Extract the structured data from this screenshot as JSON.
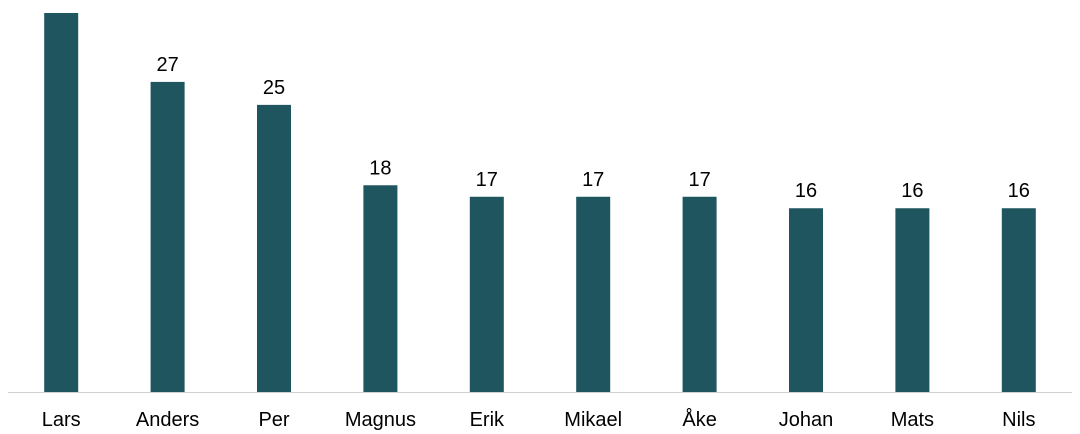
{
  "chart_data": {
    "type": "bar",
    "categories": [
      "Lars",
      "Anders",
      "Per",
      "Magnus",
      "Erik",
      "Mikael",
      "Åke",
      "Johan",
      "Mats",
      "Nils"
    ],
    "values": [
      33,
      27,
      25,
      18,
      17,
      17,
      17,
      16,
      16,
      16
    ],
    "data_labels": [
      "",
      "27",
      "25",
      "18",
      "17",
      "17",
      "17",
      "16",
      "16",
      "16"
    ],
    "ylim": [
      0,
      33
    ],
    "grid": false,
    "legend": "none",
    "bar_color": "#1f555e",
    "axis_color": "#d0d0d0"
  }
}
